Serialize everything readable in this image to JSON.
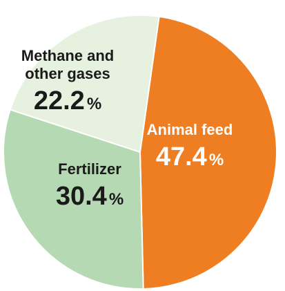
{
  "chart_data": {
    "type": "pie",
    "slices": [
      {
        "label_lines": [
          "Animal feed"
        ],
        "value": 47.4,
        "value_text": "47.4",
        "unit": "%",
        "color": "#ef7d22",
        "text_color": "#ffffff"
      },
      {
        "label_lines": [
          "Fertilizer"
        ],
        "value": 30.4,
        "value_text": "30.4",
        "unit": "%",
        "color": "#b5d9b2",
        "text_color": "#1a1a1a"
      },
      {
        "label_lines": [
          "Methane and",
          "other gases"
        ],
        "value": 22.2,
        "value_text": "22.2",
        "unit": "%",
        "color": "#e6f1e0",
        "text_color": "#1a1a1a"
      }
    ],
    "start_angle_deg": 8,
    "direction": "clockwise",
    "slice_stroke": "#ffffff"
  }
}
